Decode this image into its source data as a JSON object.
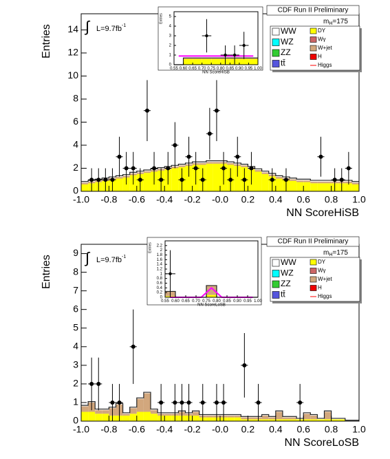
{
  "chart_data": [
    {
      "type": "histogram",
      "x_label": "NN ScoreHiSB",
      "y_label": "Entries",
      "header": "CDF Run II Preliminary",
      "lumi": "L=9.7fb",
      "lumi_exp": "-1",
      "mass": [
        "m",
        "H",
        "=175"
      ],
      "bins": [
        -1,
        -0.95,
        -0.9,
        -0.85,
        -0.8,
        -0.75,
        -0.7,
        -0.65,
        -0.6,
        -0.55,
        -0.5,
        -0.45,
        -0.4,
        -0.35,
        -0.3,
        -0.25,
        -0.2,
        -0.15,
        -0.1,
        -0.05,
        0,
        0.05,
        0.1,
        0.15,
        0.2,
        0.25,
        0.3,
        0.35,
        0.4,
        0.45,
        0.5,
        0.55,
        0.6,
        0.65,
        0.7,
        0.75,
        0.8,
        0.85,
        0.9,
        0.95,
        1
      ],
      "xlim": [
        -1,
        1
      ],
      "ylim": [
        0,
        15.4
      ],
      "xticks": [
        {
          "value": -1,
          "label": "-1.0"
        },
        -0.8,
        -0.6,
        -0.4,
        -0.2,
        {
          "value": 0,
          "label": "-0.0"
        },
        0.2,
        0.4,
        0.6,
        0.8,
        {
          "value": 1,
          "label": "1.0"
        }
      ],
      "yticks": [
        0,
        2,
        4,
        6,
        8,
        10,
        12,
        14
      ],
      "series": [
        {
          "name": "DY",
          "color": "#ffff00",
          "values": [
            0.6,
            0.7,
            0.8,
            0.9,
            1.0,
            1.1,
            1.2,
            1.4,
            1.5,
            1.6,
            1.7,
            1.8,
            1.9,
            2.0,
            2.1,
            2.2,
            2.3,
            2.3,
            2.4,
            2.4,
            2.4,
            2.3,
            2.2,
            2.1,
            1.9,
            1.7,
            1.5,
            1.3,
            1.1,
            1.0,
            0.9,
            0.8,
            0.8,
            0.7,
            0.7,
            0.7,
            0.7,
            0.7,
            0.7,
            0.6
          ]
        },
        {
          "name": "W+jet",
          "color": "#d2a77d",
          "values": [
            0.15,
            0.15,
            0.15,
            0.15,
            0.15,
            0.15,
            0.15,
            0.15,
            0.15,
            0.15,
            0.15,
            0.15,
            0.15,
            0.15,
            0.15,
            0.15,
            0.15,
            0.15,
            0.15,
            0.15,
            0.15,
            0.15,
            0.15,
            0.15,
            0.15,
            0.15,
            0.15,
            0.15,
            0.15,
            0.15,
            0.15,
            0.15,
            0.15,
            0.15,
            0.15,
            0.15,
            0.15,
            0.15,
            0.15,
            0.15
          ]
        },
        {
          "name": "WW",
          "color": "#ffffff",
          "values": [
            0.1,
            0.1,
            0.1,
            0.1,
            0.1,
            0.1,
            0.1,
            0.1,
            0.1,
            0.1,
            0.1,
            0.1,
            0.1,
            0.1,
            0.1,
            0.1,
            0.1,
            0.1,
            0.1,
            0.1,
            0.1,
            0.1,
            0.1,
            0.1,
            0.1,
            0.1,
            0.1,
            0.1,
            0.1,
            0.1,
            0.1,
            0.1,
            0.1,
            0.1,
            0.1,
            0.1,
            0.1,
            0.1,
            0.1,
            0.1
          ]
        }
      ],
      "data_points": [
        null,
        1,
        1,
        1,
        1,
        3,
        2,
        2,
        1,
        7,
        2,
        1,
        2,
        4,
        1,
        3,
        2,
        1,
        5,
        7,
        2,
        1,
        3,
        1,
        2,
        null,
        null,
        1,
        null,
        1,
        null,
        null,
        null,
        null,
        3,
        null,
        1,
        1,
        2,
        null
      ],
      "legend": [
        [
          {
            "name": "WW",
            "color": "#ffffff"
          },
          {
            "name": "WZ",
            "color": "#00ffff"
          },
          {
            "name": "ZZ",
            "color": "#33cc33"
          },
          {
            "name": "tt̄",
            "color": "#5555dd"
          }
        ],
        [
          {
            "name": "DY",
            "color": "#ffff00"
          },
          {
            "name": "Wγ",
            "color": "#cc6666"
          },
          {
            "name": "W+jet",
            "color": "#d2a77d"
          },
          {
            "name": "H",
            "color": "#ee0000"
          },
          {
            "name": "Higgs",
            "color": "#ff0000",
            "style": "line"
          }
        ]
      ],
      "inset": {
        "x_label": "NN ScoreHiSB",
        "y_label": "Entries",
        "bins": [
          0.55,
          0.6,
          0.65,
          0.7,
          0.75,
          0.8,
          0.85,
          0.9,
          0.95,
          1.0
        ],
        "xlim": [
          0.55,
          1.0
        ],
        "ylim": [
          0,
          5.5
        ],
        "xticks": [
          0.55,
          {
            "value": 0.6,
            "label": "0.60"
          },
          0.65,
          {
            "value": 0.7,
            "label": "0.70"
          },
          0.75,
          {
            "value": 0.8,
            "label": "0.80"
          },
          0.85,
          {
            "value": 0.9,
            "label": "0.90"
          },
          0.95,
          {
            "value": 1,
            "label": "1.00"
          }
        ],
        "yticks": [
          0,
          1,
          2,
          3,
          4,
          5
        ],
        "series": [
          {
            "name": "DY",
            "color": "#ffff00",
            "values": [
              0,
              0.6,
              0.6,
              0.6,
              0.6,
              0.6,
              0.6,
              0.6,
              0.6
            ]
          },
          {
            "name": "W+jet",
            "color": "#d2a77d",
            "values": [
              0,
              0.1,
              0.1,
              0.1,
              0.1,
              0.1,
              0.1,
              0.1,
              0.1
            ]
          }
        ],
        "higgs_line": {
          "color": "#ff00ff",
          "values": [
            0.9,
            0.9,
            0.9,
            0.9,
            0.9,
            0.9,
            0.9,
            0.9,
            0.9
          ]
        },
        "data_points": [
          null,
          null,
          null,
          3,
          null,
          1,
          1,
          2,
          null
        ]
      }
    },
    {
      "type": "histogram",
      "x_label": "NN ScoreLoSB",
      "y_label": "Entries",
      "header": "CDF Run II Preliminary",
      "lumi": "L=9.7fb",
      "lumi_exp": "-1",
      "mass": [
        "m",
        "H",
        "=175"
      ],
      "bins": [
        -1,
        -0.95,
        -0.9,
        -0.85,
        -0.8,
        -0.75,
        -0.7,
        -0.65,
        -0.6,
        -0.55,
        -0.5,
        -0.45,
        -0.4,
        -0.35,
        -0.3,
        -0.25,
        -0.2,
        -0.15,
        -0.1,
        -0.05,
        0,
        0.05,
        0.1,
        0.15,
        0.2,
        0.25,
        0.3,
        0.35,
        0.4,
        0.45,
        0.5,
        0.55,
        0.6,
        0.65,
        0.7,
        0.75,
        0.8,
        0.85,
        0.9,
        0.95,
        1
      ],
      "xlim": [
        -1,
        1
      ],
      "ylim": [
        0,
        9.5
      ],
      "xticks": [
        {
          "value": -1,
          "label": "-1.0"
        },
        -0.8,
        -0.6,
        -0.4,
        -0.2,
        {
          "value": 0,
          "label": "-0.0"
        },
        0.2,
        0.4,
        0.6,
        0.8,
        {
          "value": 1,
          "label": "1.0"
        }
      ],
      "yticks": [
        0,
        1,
        2,
        3,
        4,
        5,
        6,
        7,
        8,
        9
      ],
      "series": [
        {
          "name": "DY",
          "color": "#ffff00",
          "values": [
            0.5,
            0.5,
            0.4,
            0.4,
            0.3,
            0.3,
            0.3,
            0.4,
            0.5,
            0.5,
            0.4,
            0.3,
            0.3,
            0.3,
            0.3,
            0.3,
            0.3,
            0.2,
            0.2,
            0.2,
            0.2,
            0.2,
            0.2,
            0.1,
            0.1,
            0.1,
            0.1,
            0.1,
            0.1,
            0.1,
            0.1,
            0.1,
            0.1,
            0.1,
            0.1,
            0.1,
            0.1,
            0.1,
            0,
            0
          ]
        },
        {
          "name": "W+jet",
          "color": "#d2a77d",
          "values": [
            0.3,
            0.5,
            0.2,
            0.2,
            0.4,
            0.6,
            0.1,
            0.3,
            0.7,
            1.0,
            0.2,
            0.1,
            0.1,
            0.1,
            0.2,
            0.1,
            0.2,
            0.1,
            0.1,
            0.1,
            0.1,
            0.1,
            0.1,
            0.1,
            0.1,
            0.1,
            0.2,
            0.1,
            0.4,
            0.1,
            0.1,
            0,
            0.3,
            0.2,
            0,
            0.4,
            0,
            0,
            0,
            0
          ]
        },
        {
          "name": "WW",
          "color": "#ffffff",
          "values": [
            0.05,
            0.05,
            0.05,
            0.05,
            0.05,
            0.05,
            0.05,
            0.05,
            0.05,
            0.05,
            0.05,
            0.05,
            0.05,
            0.05,
            0.05,
            0.05,
            0.05,
            0.05,
            0.05,
            0.05,
            0.05,
            0.05,
            0.05,
            0.05,
            0.05,
            0.05,
            0.05,
            0.05,
            0.05,
            0.05,
            0.05,
            0.05,
            0.05,
            0.05,
            0.05,
            0.05,
            0.05,
            0.05,
            0.05,
            0.05
          ]
        }
      ],
      "data_points": [
        null,
        2,
        2,
        null,
        1,
        1,
        null,
        4,
        null,
        null,
        null,
        1,
        null,
        1,
        1,
        1,
        null,
        1,
        null,
        1,
        1,
        null,
        null,
        3,
        null,
        1,
        null,
        null,
        null,
        null,
        null,
        1,
        null,
        null,
        null,
        null,
        null,
        null,
        null,
        null
      ],
      "legend": [
        [
          {
            "name": "WW",
            "color": "#ffffff"
          },
          {
            "name": "WZ",
            "color": "#00ffff"
          },
          {
            "name": "ZZ",
            "color": "#33cc33"
          },
          {
            "name": "tt̄",
            "color": "#5555dd"
          }
        ],
        [
          {
            "name": "DY",
            "color": "#ffff00"
          },
          {
            "name": "Wγ",
            "color": "#cc6666"
          },
          {
            "name": "W+jet",
            "color": "#d2a77d"
          },
          {
            "name": "H",
            "color": "#ee0000"
          },
          {
            "name": "Higgs",
            "color": "#ff0000",
            "style": "line"
          }
        ]
      ],
      "inset": {
        "x_label": "NN ScoreLoSB",
        "y_label": "Entries",
        "bins": [
          0.55,
          0.6,
          0.65,
          0.7,
          0.75,
          0.8,
          0.85,
          0.9,
          0.95,
          1.0
        ],
        "xlim": [
          0.55,
          1.0
        ],
        "ylim": [
          0,
          2.4
        ],
        "xticks": [
          0.55,
          {
            "value": 0.6,
            "label": "0.60"
          },
          0.65,
          {
            "value": 0.7,
            "label": "0.70"
          },
          0.75,
          {
            "value": 0.8,
            "label": "0.80"
          },
          0.85,
          {
            "value": 0.9,
            "label": "0.90"
          },
          0.95,
          {
            "value": 1,
            "label": "1.00"
          }
        ],
        "yticks": [
          0,
          0.2,
          0.4,
          0.6,
          0.8,
          1,
          1.2,
          1.4,
          1.6,
          1.8,
          2,
          2.2
        ],
        "series": [
          {
            "name": "DY",
            "color": "#ffff00",
            "values": [
              0.05,
              0,
              0,
              0,
              0.1,
              0,
              0,
              0,
              0
            ]
          },
          {
            "name": "W+jet",
            "color": "#d2a77d",
            "values": [
              0.2,
              0,
              0,
              0,
              0.4,
              0,
              0,
              0,
              0
            ]
          }
        ],
        "higgs_line": {
          "color": "#ff00ff",
          "values": [
            0,
            0,
            0,
            0,
            0.4,
            0,
            0,
            0,
            0
          ]
        },
        "data_points": [
          1,
          null,
          null,
          null,
          null,
          null,
          null,
          null,
          null
        ]
      }
    }
  ]
}
